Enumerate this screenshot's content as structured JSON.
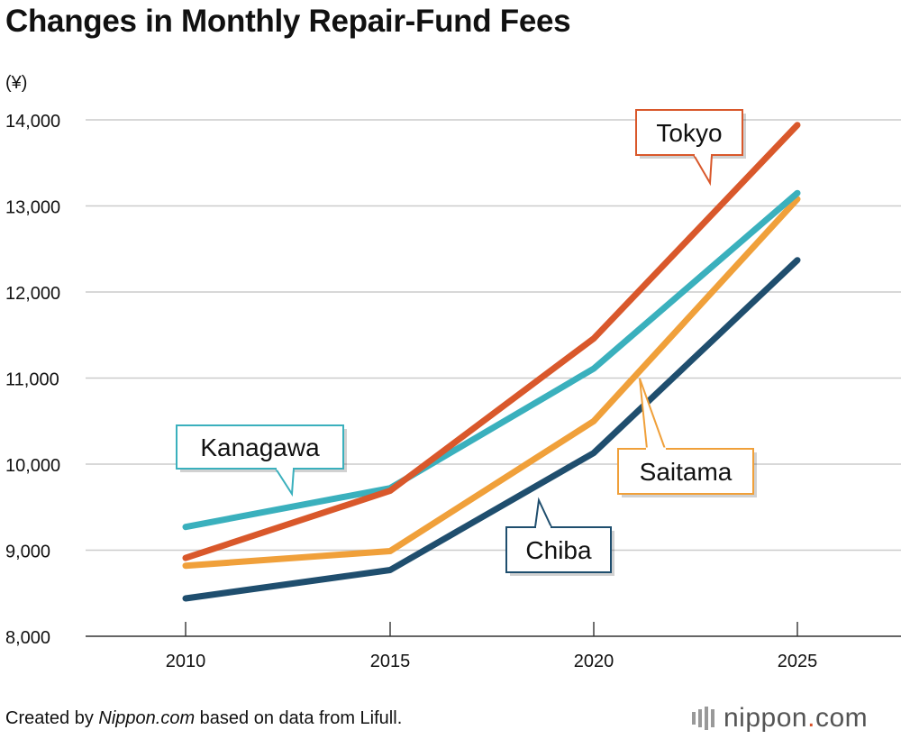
{
  "title": "Changes in Monthly Repair-Fund Fees",
  "footer": {
    "prefix": "Created by ",
    "source_italic": "Nippon.com",
    "suffix": " based on data from Lifull."
  },
  "logo": {
    "name": "nippon",
    "dot": ".",
    "tld": "com"
  },
  "colors": {
    "Tokyo": "#d9582b",
    "Kanagawa": "#3ab0bd",
    "Saitama": "#f0a03a",
    "Chiba": "#1f4e6e",
    "grid": "#cccccc"
  },
  "chart_data": {
    "type": "line",
    "title": "Changes in Monthly Repair-Fund Fees",
    "ylabel": "(¥)",
    "xlabel": "",
    "categories": [
      "2010",
      "2015",
      "2020",
      "2025"
    ],
    "ylim": [
      8000,
      14000
    ],
    "yticks": [
      8000,
      9000,
      10000,
      11000,
      12000,
      13000,
      14000
    ],
    "ytick_labels": [
      "8,000",
      "9,000",
      "10,000",
      "11,000",
      "12,000",
      "13,000",
      "14,000"
    ],
    "grid": true,
    "series": [
      {
        "name": "Tokyo",
        "values": [
          8910,
          9690,
          11460,
          13940
        ]
      },
      {
        "name": "Kanagawa",
        "values": [
          9270,
          9720,
          11110,
          13150
        ]
      },
      {
        "name": "Saitama",
        "values": [
          8820,
          8990,
          10500,
          13080
        ]
      },
      {
        "name": "Chiba",
        "values": [
          8440,
          8770,
          10130,
          12370
        ]
      }
    ]
  }
}
